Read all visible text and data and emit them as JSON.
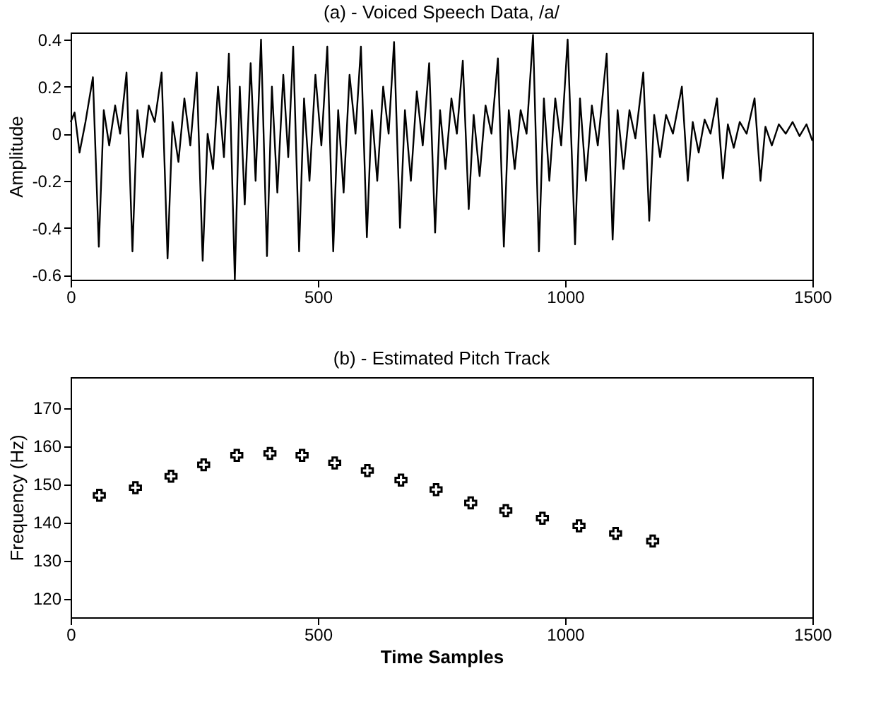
{
  "chart_data": [
    {
      "type": "line",
      "title": "(a)  -  Voiced Speech Data, /a/",
      "ylabel": "Amplitude",
      "xlim": [
        0,
        1500
      ],
      "xticks": [
        0,
        500,
        1000,
        1500
      ],
      "ylim": [
        -0.62,
        0.43
      ],
      "yticks": [
        -0.6,
        -0.4,
        -0.2,
        0,
        0.2,
        0.4
      ],
      "grid": false,
      "series": [
        {
          "color": "#000000",
          "x": [
            0,
            8,
            18,
            30,
            45,
            57,
            67,
            78,
            90,
            100,
            113,
            125,
            135,
            146,
            158,
            170,
            184,
            196,
            206,
            218,
            230,
            242,
            255,
            267,
            277,
            288,
            298,
            310,
            320,
            332,
            342,
            352,
            364,
            374,
            385,
            397,
            407,
            418,
            430,
            440,
            450,
            462,
            472,
            483,
            495,
            507,
            519,
            531,
            541,
            552,
            564,
            576,
            587,
            599,
            609,
            620,
            632,
            643,
            654,
            666,
            676,
            688,
            700,
            712,
            725,
            737,
            747,
            758,
            770,
            781,
            793,
            805,
            815,
            827,
            839,
            851,
            864,
            876,
            886,
            898,
            910,
            922,
            935,
            947,
            957,
            968,
            980,
            992,
            1005,
            1020,
            1030,
            1042,
            1054,
            1066,
            1084,
            1096,
            1106,
            1118,
            1130,
            1142,
            1158,
            1170,
            1180,
            1192,
            1204,
            1218,
            1236,
            1248,
            1258,
            1270,
            1282,
            1294,
            1307,
            1319,
            1329,
            1341,
            1353,
            1367,
            1383,
            1395,
            1405,
            1418,
            1432,
            1446,
            1460,
            1474,
            1488,
            1500
          ],
          "values": [
            0.05,
            0.09,
            -0.08,
            0.05,
            0.24,
            -0.48,
            0.1,
            -0.05,
            0.12,
            0.0,
            0.26,
            -0.5,
            0.1,
            -0.1,
            0.12,
            0.05,
            0.26,
            -0.53,
            0.05,
            -0.12,
            0.15,
            -0.05,
            0.26,
            -0.54,
            0.0,
            -0.15,
            0.2,
            -0.1,
            0.34,
            -0.62,
            0.2,
            -0.3,
            0.3,
            -0.2,
            0.4,
            -0.52,
            0.2,
            -0.25,
            0.25,
            -0.1,
            0.37,
            -0.5,
            0.15,
            -0.2,
            0.25,
            -0.05,
            0.37,
            -0.5,
            0.1,
            -0.25,
            0.25,
            0.0,
            0.37,
            -0.44,
            0.1,
            -0.2,
            0.2,
            0.0,
            0.39,
            -0.4,
            0.1,
            -0.2,
            0.18,
            -0.05,
            0.3,
            -0.42,
            0.1,
            -0.15,
            0.15,
            0.0,
            0.31,
            -0.32,
            0.08,
            -0.18,
            0.12,
            0.0,
            0.32,
            -0.48,
            0.1,
            -0.15,
            0.1,
            0.0,
            0.42,
            -0.5,
            0.15,
            -0.2,
            0.15,
            -0.05,
            0.4,
            -0.47,
            0.15,
            -0.2,
            0.12,
            -0.05,
            0.34,
            -0.45,
            0.1,
            -0.15,
            0.1,
            -0.02,
            0.26,
            -0.37,
            0.08,
            -0.1,
            0.08,
            0.0,
            0.2,
            -0.2,
            0.05,
            -0.08,
            0.06,
            0.0,
            0.15,
            -0.19,
            0.04,
            -0.06,
            0.05,
            0.0,
            0.15,
            -0.2,
            0.03,
            -0.05,
            0.04,
            0.0,
            0.05,
            -0.01,
            0.04,
            -0.03
          ]
        }
      ]
    },
    {
      "type": "scatter",
      "title": "(b)  -  Estimated Pitch Track",
      "xlabel": "Time Samples",
      "ylabel": "Frequency (Hz)",
      "xlim": [
        0,
        1500
      ],
      "xticks": [
        0,
        500,
        1000,
        1500
      ],
      "ylim": [
        115,
        178
      ],
      "yticks": [
        120,
        130,
        140,
        150,
        160,
        170
      ],
      "grid": false,
      "marker": "cross",
      "series": [
        {
          "color": "#000000",
          "x": [
            58,
            131,
            203,
            269,
            336,
            403,
            468,
            534,
            600,
            668,
            739,
            809,
            880,
            954,
            1028,
            1102,
            1177
          ],
          "values": [
            147,
            149,
            152,
            155,
            157.5,
            158,
            157.5,
            155.5,
            153.5,
            151,
            148.5,
            145,
            143,
            141,
            139,
            137,
            135
          ]
        }
      ]
    }
  ]
}
